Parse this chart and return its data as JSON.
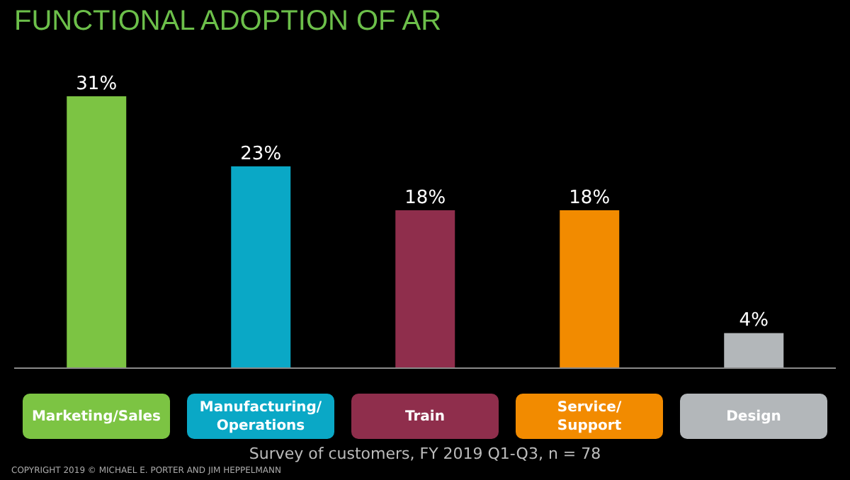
{
  "chart_data": {
    "type": "bar",
    "title": "FUNCTIONAL ADOPTION OF AR",
    "categories": [
      "Marketing/Sales",
      "Manufacturing/ Operations",
      "Train",
      "Service/ Support",
      "Design"
    ],
    "values": [
      31,
      23,
      18,
      18,
      4
    ],
    "colors": [
      "#7cc443",
      "#0aa8c6",
      "#8f2e4c",
      "#f28b00",
      "#b3b7ba"
    ],
    "value_labels": [
      "31%",
      "23%",
      "18%",
      "18%",
      "4%"
    ],
    "annotations": [
      "Survey of customers, FY 2019 Q1-Q3, n = 78",
      "COPYRIGHT 2019 © MICHAEL E. PORTER AND JIM HEPPELMANN"
    ]
  }
}
